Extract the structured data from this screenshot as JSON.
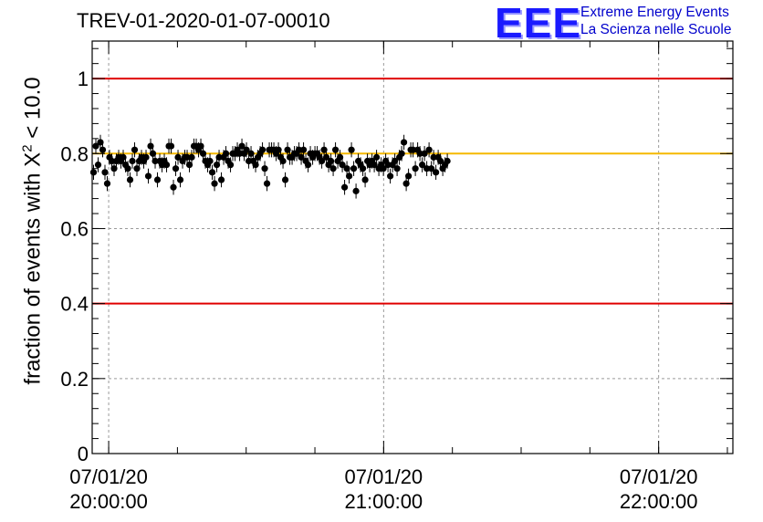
{
  "title": "TREV-01-2020-01-07-00010",
  "logo": {
    "mark": "EEE",
    "line1": "Extreme Energy Events",
    "line2": "La Scienza nelle Scuole",
    "color": "#1a1aff"
  },
  "chart_data": {
    "type": "scatter",
    "ylabel_prefix": "fraction of events with ",
    "ylabel_symbol": "X",
    "ylabel_sup": "2",
    "ylabel_suffix": " < 10.0",
    "ylim": [
      0,
      1.1
    ],
    "yticks": [
      "0",
      "0.2",
      "0.4",
      "0.6",
      "0.8",
      "1"
    ],
    "xlim_hours": [
      19.94,
      22.27
    ],
    "xticks": [
      {
        "date": "07/01/20",
        "time": "20:00:00"
      },
      {
        "date": "07/01/20",
        "time": "21:00:00"
      },
      {
        "date": "07/01/20",
        "time": "22:00:00"
      }
    ],
    "grid": true,
    "reference_lines": [
      {
        "y": 1.0,
        "color": "#e00000"
      },
      {
        "y": 0.4,
        "color": "#e00000"
      },
      {
        "y": 0.8,
        "color": "#f5b800"
      }
    ],
    "series": [
      {
        "marker_color": "#000000",
        "start_hour": 19.945,
        "step_hours": 0.0083,
        "error": 0.02,
        "y": [
          0.75,
          0.82,
          0.77,
          0.83,
          0.81,
          0.75,
          0.72,
          0.79,
          0.78,
          0.76,
          0.78,
          0.79,
          0.78,
          0.79,
          0.77,
          0.76,
          0.73,
          0.78,
          0.81,
          0.76,
          0.78,
          0.79,
          0.78,
          0.79,
          0.74,
          0.82,
          0.8,
          0.78,
          0.73,
          0.78,
          0.77,
          0.78,
          0.77,
          0.82,
          0.82,
          0.71,
          0.76,
          0.79,
          0.73,
          0.78,
          0.79,
          0.79,
          0.77,
          0.79,
          0.82,
          0.82,
          0.81,
          0.82,
          0.8,
          0.78,
          0.77,
          0.78,
          0.75,
          0.72,
          0.77,
          0.79,
          0.73,
          0.79,
          0.8,
          0.78,
          0.77,
          0.8,
          0.8,
          0.81,
          0.8,
          0.82,
          0.8,
          0.81,
          0.78,
          0.8,
          0.78,
          0.77,
          0.79,
          0.8,
          0.81,
          0.76,
          0.72,
          0.81,
          0.81,
          0.81,
          0.8,
          0.81,
          0.79,
          0.78,
          0.73,
          0.81,
          0.79,
          0.79,
          0.8,
          0.8,
          0.81,
          0.79,
          0.81,
          0.78,
          0.77,
          0.8,
          0.79,
          0.8,
          0.8,
          0.79,
          0.78,
          0.81,
          0.79,
          0.77,
          0.78,
          0.76,
          0.81,
          0.78,
          0.79,
          0.77,
          0.71,
          0.76,
          0.74,
          0.81,
          0.76,
          0.7,
          0.78,
          0.77,
          0.76,
          0.73,
          0.78,
          0.77,
          0.78,
          0.77,
          0.79,
          0.76,
          0.77,
          0.76,
          0.78,
          0.77,
          0.74,
          0.77,
          0.78,
          0.76,
          0.79,
          0.8,
          0.83,
          0.72,
          0.74,
          0.81,
          0.81,
          0.76,
          0.81,
          0.8,
          0.77,
          0.8,
          0.76,
          0.81,
          0.76,
          0.79,
          0.75,
          0.79,
          0.78,
          0.76,
          0.77,
          0.78
        ]
      }
    ]
  }
}
